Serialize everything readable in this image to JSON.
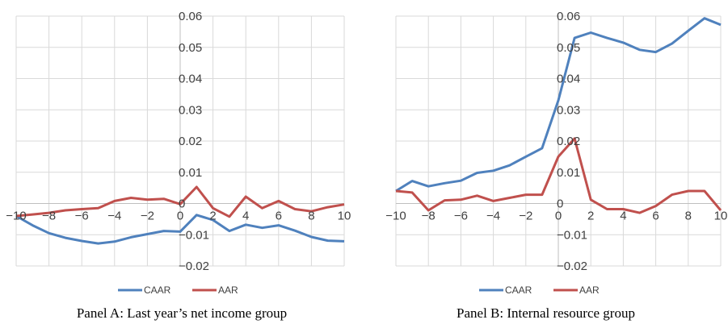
{
  "chart_data": [
    {
      "type": "line",
      "caption": "Panel A: Last year’s net income group",
      "x": [
        -10,
        -9,
        -8,
        -7,
        -6,
        -5,
        -4,
        -3,
        -2,
        -1,
        0,
        1,
        2,
        3,
        4,
        5,
        6,
        7,
        8,
        9,
        10
      ],
      "x_ticks": [
        "−10",
        "−8",
        "−6",
        "−4",
        "−2",
        "0",
        "2",
        "4",
        "6",
        "8",
        "10"
      ],
      "y_ticks": [
        "−0.02",
        "−0.01",
        "0",
        "0.01",
        "0.02",
        "0.03",
        "0.04",
        "0.05",
        "0.06"
      ],
      "ylim": [
        -0.02,
        0.06
      ],
      "xlim": [
        -10,
        10
      ],
      "grid": true,
      "legend_position": "bottom",
      "series": [
        {
          "name": "CAAR",
          "color": "#4F81BD",
          "values": [
            -0.004,
            -0.007,
            -0.0095,
            -0.011,
            -0.012,
            -0.0128,
            -0.0122,
            -0.0108,
            -0.0098,
            -0.0088,
            -0.009,
            -0.0037,
            -0.0053,
            -0.0088,
            -0.0068,
            -0.0078,
            -0.007,
            -0.0087,
            -0.0107,
            -0.0119,
            -0.0121
          ]
        },
        {
          "name": "AAR",
          "color": "#C0504D",
          "values": [
            -0.004,
            -0.0035,
            -0.003,
            -0.0022,
            -0.0018,
            -0.0015,
            0.0008,
            0.0018,
            0.0012,
            0.0015,
            -0.0002,
            0.0053,
            -0.0015,
            -0.0042,
            0.0022,
            -0.0015,
            0.0008,
            -0.0018,
            -0.0025,
            -0.0012,
            -0.0003
          ]
        }
      ]
    },
    {
      "type": "line",
      "caption": "Panel B: Internal resource group",
      "x": [
        -10,
        -9,
        -8,
        -7,
        -6,
        -5,
        -4,
        -3,
        -2,
        -1,
        0,
        1,
        2,
        3,
        4,
        5,
        6,
        7,
        8,
        9,
        10
      ],
      "x_ticks": [
        "−10",
        "−8",
        "−6",
        "−4",
        "−2",
        "0",
        "2",
        "4",
        "6",
        "8",
        "10"
      ],
      "y_ticks": [
        "−0.02",
        "−0.01",
        "0",
        "0.01",
        "0.02",
        "0.03",
        "0.04",
        "0.05",
        "0.06"
      ],
      "ylim": [
        -0.02,
        0.06
      ],
      "xlim": [
        -10,
        10
      ],
      "grid": true,
      "legend_position": "bottom",
      "series": [
        {
          "name": "CAAR",
          "color": "#4F81BD",
          "values": [
            0.004,
            0.0072,
            0.0055,
            0.0065,
            0.0073,
            0.0098,
            0.0105,
            0.0122,
            0.015,
            0.0177,
            0.033,
            0.053,
            0.0547,
            0.053,
            0.0515,
            0.0492,
            0.0485,
            0.0512,
            0.0553,
            0.0593,
            0.0572
          ]
        },
        {
          "name": "AAR",
          "color": "#C0504D",
          "values": [
            0.004,
            0.0035,
            -0.0022,
            0.001,
            0.0012,
            0.0025,
            0.0008,
            0.0018,
            0.0028,
            0.0028,
            0.015,
            0.0208,
            0.0012,
            -0.0018,
            -0.0018,
            -0.003,
            -0.0008,
            0.0028,
            0.004,
            0.004,
            -0.0022
          ]
        }
      ]
    }
  ]
}
